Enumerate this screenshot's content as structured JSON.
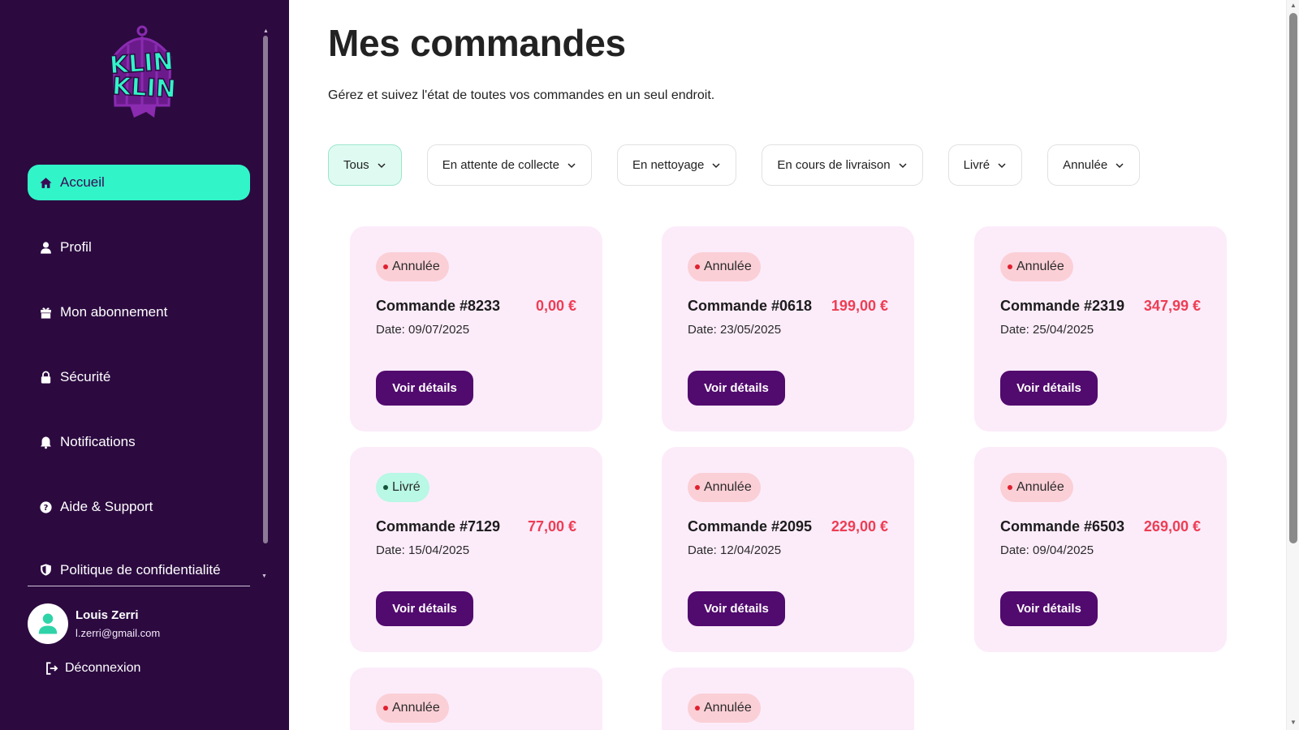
{
  "sidebar": {
    "logo_text": "KLIN KLIN",
    "items": [
      {
        "label": "Accueil",
        "icon": "home-icon",
        "active": true
      },
      {
        "label": "Profil",
        "icon": "user-icon"
      },
      {
        "label": "Mon abonnement",
        "icon": "gift-icon"
      },
      {
        "label": "Sécurité",
        "icon": "lock-icon"
      },
      {
        "label": "Notifications",
        "icon": "bell-icon"
      },
      {
        "label": "Aide & Support",
        "icon": "help-icon"
      },
      {
        "label": "Politique de confidentialité",
        "icon": "shield-icon"
      }
    ],
    "user": {
      "name": "Louis Zerri",
      "email": "l.zerri@gmail.com"
    },
    "logout_label": "Déconnexion"
  },
  "main": {
    "title": "Mes commandes",
    "subtitle": "Gérez et suivez l'état de toutes vos commandes en un seul endroit.",
    "filters": [
      {
        "label": "Tous",
        "active": true
      },
      {
        "label": "En attente de collecte"
      },
      {
        "label": "En nettoyage"
      },
      {
        "label": "En cours de livraison"
      },
      {
        "label": "Livré"
      },
      {
        "label": "Annulée"
      }
    ],
    "details_label": "Voir détails",
    "orders": [
      {
        "status": "Annulée",
        "status_type": "cancel",
        "title": "Commande #8233",
        "price": "0,00 €",
        "date": "Date: 09/07/2025"
      },
      {
        "status": "Annulée",
        "status_type": "cancel",
        "title": "Commande #0618",
        "price": "199,00 €",
        "date": "Date: 23/05/2025"
      },
      {
        "status": "Annulée",
        "status_type": "cancel",
        "title": "Commande #2319",
        "price": "347,99 €",
        "date": "Date: 25/04/2025"
      },
      {
        "status": "Livré",
        "status_type": "delivered",
        "title": "Commande #7129",
        "price": "77,00 €",
        "date": "Date: 15/04/2025"
      },
      {
        "status": "Annulée",
        "status_type": "cancel",
        "title": "Commande #2095",
        "price": "229,00 €",
        "date": "Date: 12/04/2025"
      },
      {
        "status": "Annulée",
        "status_type": "cancel",
        "title": "Commande #6503",
        "price": "269,00 €",
        "date": "Date: 09/04/2025"
      },
      {
        "status": "Annulée",
        "status_type": "cancel"
      },
      {
        "status": "Annulée",
        "status_type": "cancel"
      }
    ]
  },
  "colors": {
    "sidebar_bg": "#2c0a40",
    "accent_mint": "#31f5c8",
    "card_bg": "#fcecfa",
    "button_purple": "#510a6e",
    "price_red": "#ee3d54",
    "cancel_badge": "#fbcfd6",
    "delivered_badge": "#b8f8e4"
  }
}
